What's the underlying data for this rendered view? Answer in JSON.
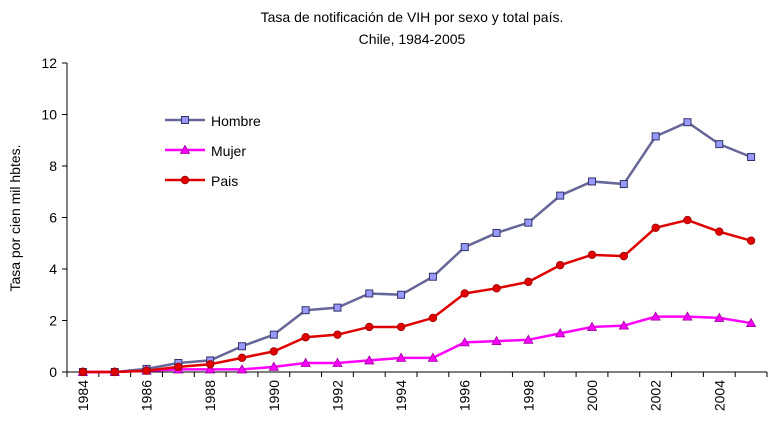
{
  "chart_data": {
    "type": "line",
    "title": "Tasa de notificación de VIH por sexo y total país.",
    "subtitle": "Chile, 1984-2005",
    "y_label": "Tasa por cien mil hbtes.",
    "categories": [
      "1984",
      null,
      "1986",
      null,
      "1988",
      null,
      "1990",
      null,
      "1992",
      null,
      "1994",
      null,
      "1996",
      null,
      "1998",
      null,
      "2000",
      null,
      "2002",
      null,
      "2004",
      null
    ],
    "ylim": [
      0,
      12
    ],
    "yticks": [
      0,
      2,
      4,
      6,
      8,
      10,
      12
    ],
    "grid": false,
    "legend": "upper left",
    "series": [
      {
        "name": "Hombre",
        "color": "#666699",
        "marker": "square",
        "values": [
          0,
          0,
          0.12,
          0.35,
          0.45,
          1.0,
          1.45,
          2.4,
          2.5,
          3.05,
          3.0,
          3.7,
          4.85,
          5.4,
          5.8,
          6.85,
          7.4,
          7.3,
          9.15,
          9.7,
          8.85,
          8.35
        ]
      },
      {
        "name": "Mujer",
        "color": "#ff00ff",
        "marker": "triangle",
        "values": [
          0,
          0,
          0.05,
          0.1,
          0.1,
          0.1,
          0.2,
          0.35,
          0.35,
          0.45,
          0.55,
          0.55,
          1.15,
          1.2,
          1.25,
          1.5,
          1.75,
          1.8,
          2.15,
          2.15,
          2.1,
          1.9
        ]
      },
      {
        "name": "Pais",
        "color": "#e00000",
        "marker": "circle",
        "values": [
          0,
          0,
          0.05,
          0.2,
          0.3,
          0.55,
          0.8,
          1.35,
          1.45,
          1.75,
          1.75,
          2.1,
          3.05,
          3.25,
          3.5,
          4.15,
          4.55,
          4.5,
          5.6,
          5.9,
          5.45,
          5.1
        ]
      }
    ]
  }
}
